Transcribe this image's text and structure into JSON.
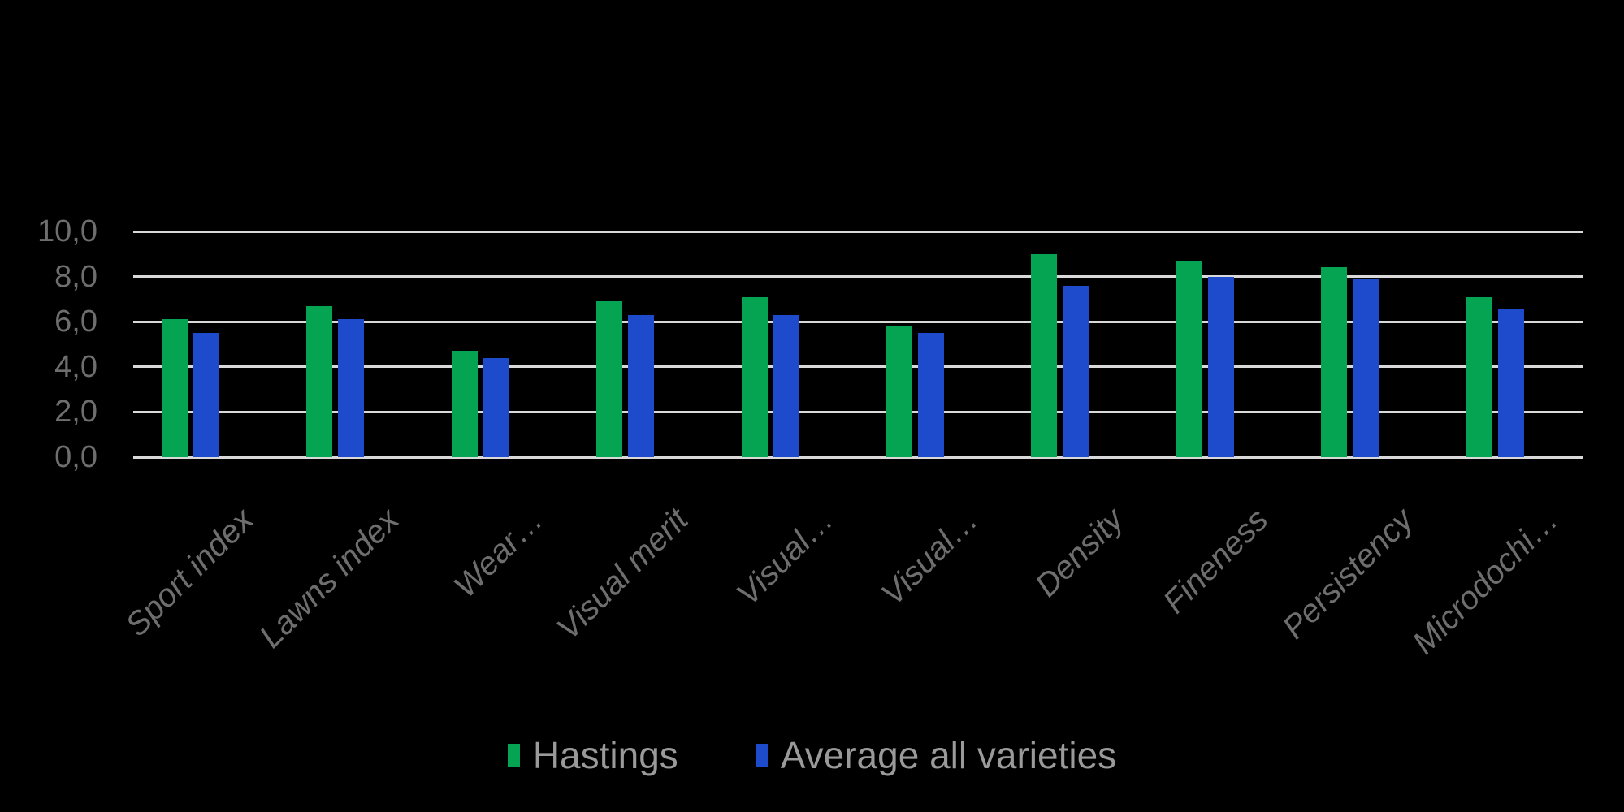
{
  "chart_data": {
    "type": "bar",
    "categories": [
      "Sport index",
      "Lawns index",
      "Wear…",
      "Visual merit",
      "Visual…",
      "Visual…",
      "Density",
      "Fineness",
      "Persistency",
      "Microdochi…"
    ],
    "series": [
      {
        "name": "Hastings",
        "color": "#04a452",
        "values": [
          6.1,
          6.7,
          4.7,
          6.9,
          7.1,
          5.8,
          9.0,
          8.7,
          8.4,
          7.1
        ]
      },
      {
        "name": "Average all varieties",
        "color": "#1d4bcb",
        "values": [
          5.5,
          6.1,
          4.4,
          6.3,
          6.3,
          5.5,
          7.6,
          8.0,
          7.9,
          6.6
        ]
      }
    ],
    "title": "",
    "xlabel": "",
    "ylabel": "",
    "ylim": [
      0,
      10
    ],
    "y_ticks": [
      0,
      2,
      4,
      6,
      8,
      10
    ],
    "y_tick_labels": [
      "0,0",
      "2,0",
      "4,0",
      "6,0",
      "8,0",
      "10,0"
    ],
    "grid": true,
    "legend_position": "bottom",
    "background_color": "#000000",
    "gridline_color": "#d9d9d9",
    "axis_label_color": "#6e6e6e",
    "legend_text_color": "#9a9a9a"
  }
}
